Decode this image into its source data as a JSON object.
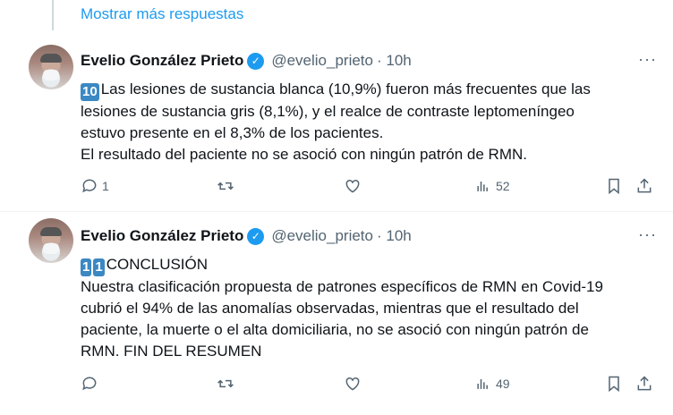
{
  "show_more": "Mostrar más respuestas",
  "tweets": [
    {
      "name": "Evelio González Prieto",
      "handle": "@evelio_prieto",
      "time": "· 10h",
      "keycaps": [
        "10"
      ],
      "lines": [
        "Las lesiones de sustancia blanca (10,9%) fueron más frecuentes que las",
        "lesiones de sustancia gris (8,1%), y el realce de contraste leptomeníngeo",
        "estuvo presente en el 8,3% de los pacientes.",
        "El resultado del paciente no se asoció con ningún patrón de RMN."
      ],
      "replies": "1",
      "retweets": "",
      "likes": "",
      "views": "52"
    },
    {
      "name": "Evelio González Prieto",
      "handle": "@evelio_prieto",
      "time": "· 10h",
      "keycaps": [
        "1",
        "1"
      ],
      "lines": [
        "CONCLUSIÓN",
        "Nuestra clasificación propuesta de patrones específicos de RMN en Covid-19",
        "cubrió el 94% de las anomalías observadas, mientras que el resultado del",
        "paciente, la muerte o el alta domiciliaria, no se asoció con ningún patrón de",
        "RMN. FIN DEL RESUMEN"
      ],
      "replies": "",
      "retweets": "",
      "likes": "",
      "views": "49"
    }
  ],
  "colors": {
    "accent": "#1d9bf0",
    "muted": "#536471",
    "keycap": "#3b88c3"
  }
}
